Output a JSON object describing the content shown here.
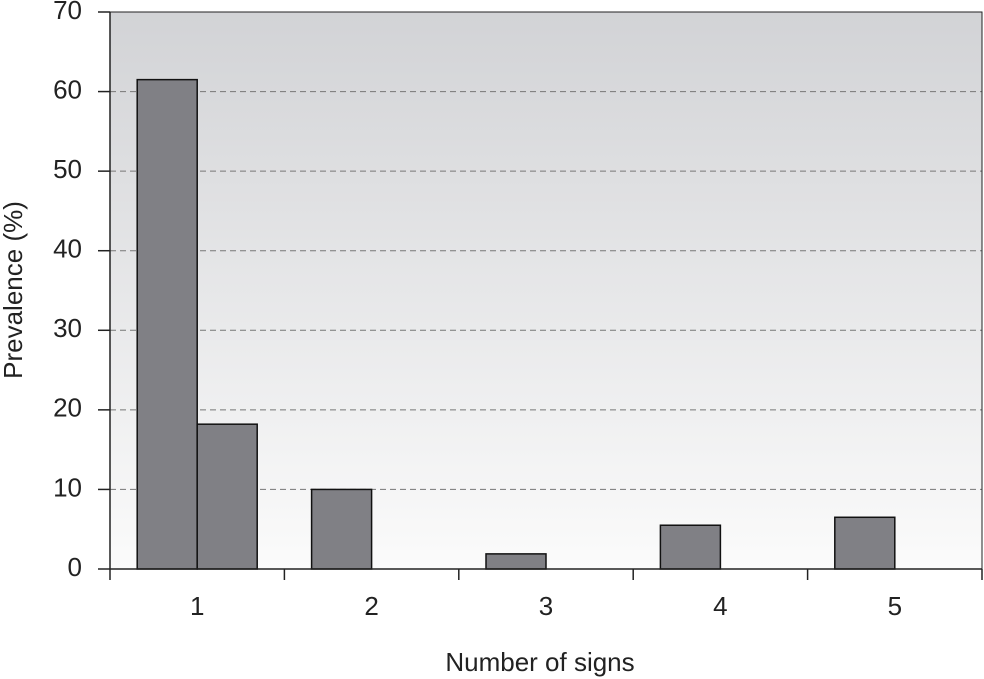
{
  "chart_data": {
    "type": "bar",
    "x_label": "Number of signs",
    "y_label": "Prevalence (%)",
    "categories": [
      "1",
      "2",
      "3",
      "4",
      "5"
    ],
    "series": [
      {
        "color": "#808085",
        "values": [
          61.5,
          10,
          1.9,
          5.5,
          6.5
        ]
      },
      {
        "color": "#808085",
        "values": [
          18.2,
          null,
          null,
          null,
          null
        ]
      }
    ],
    "ylim": [
      0,
      70
    ],
    "yticks": [
      0,
      10,
      20,
      30,
      40,
      50,
      60,
      70
    ],
    "grid": true
  }
}
